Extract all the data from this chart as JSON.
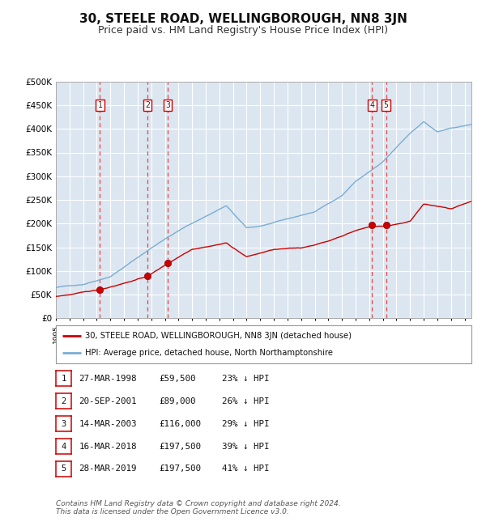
{
  "title": "30, STEELE ROAD, WELLINGBOROUGH, NN8 3JN",
  "subtitle": "Price paid vs. HM Land Registry's House Price Index (HPI)",
  "title_fontsize": 11,
  "subtitle_fontsize": 9,
  "background_color": "#ffffff",
  "plot_bg_color": "#dce6f0",
  "grid_color": "#ffffff",
  "xlim": [
    1995.0,
    2025.5
  ],
  "ylim": [
    0,
    500000
  ],
  "yticks": [
    0,
    50000,
    100000,
    150000,
    200000,
    250000,
    300000,
    350000,
    400000,
    450000,
    500000
  ],
  "ytick_labels": [
    "£0",
    "£50K",
    "£100K",
    "£150K",
    "£200K",
    "£250K",
    "£300K",
    "£350K",
    "£400K",
    "£450K",
    "£500K"
  ],
  "sale_points": [
    {
      "label": "1",
      "year": 1998.23,
      "price": 59500
    },
    {
      "label": "2",
      "year": 2001.72,
      "price": 89000
    },
    {
      "label": "3",
      "year": 2003.2,
      "price": 116000
    },
    {
      "label": "4",
      "year": 2018.21,
      "price": 197500
    },
    {
      "label": "5",
      "year": 2019.24,
      "price": 197500
    }
  ],
  "sale_dates": [
    "27-MAR-1998",
    "20-SEP-2001",
    "14-MAR-2003",
    "16-MAR-2018",
    "28-MAR-2019"
  ],
  "sale_prices_str": [
    "£59,500",
    "£89,000",
    "£116,000",
    "£197,500",
    "£197,500"
  ],
  "sale_hpi_str": [
    "23% ↓ HPI",
    "26% ↓ HPI",
    "29% ↓ HPI",
    "39% ↓ HPI",
    "41% ↓ HPI"
  ],
  "legend_label_red": "30, STEELE ROAD, WELLINGBOROUGH, NN8 3JN (detached house)",
  "legend_label_blue": "HPI: Average price, detached house, North Northamptonshire",
  "footer_text": "Contains HM Land Registry data © Crown copyright and database right 2024.\nThis data is licensed under the Open Government Licence v3.0.",
  "red_line_color": "#cc0000",
  "blue_line_color": "#7aadd4",
  "sale_marker_color": "#cc0000",
  "vline_color": "#ee4444",
  "box_color": "#cc0000",
  "hpi_keypoints_x": [
    1995,
    1997,
    1999,
    2001,
    2003,
    2004.5,
    2007.5,
    2009,
    2010,
    2012,
    2014,
    2016,
    2017,
    2019,
    2021,
    2022,
    2023,
    2024,
    2025.5
  ],
  "hpi_keypoints_y": [
    65000,
    72000,
    90000,
    130000,
    170000,
    195000,
    240000,
    192000,
    196000,
    210000,
    225000,
    260000,
    290000,
    330000,
    390000,
    415000,
    393000,
    400000,
    408000
  ],
  "red_keypoints_x": [
    1995,
    1997,
    1998.23,
    2001.72,
    2003.2,
    2005,
    2007.5,
    2009,
    2011,
    2013,
    2015,
    2017,
    2018.21,
    2019.24,
    2021,
    2022,
    2023,
    2024,
    2025.5
  ],
  "red_keypoints_y": [
    46000,
    54000,
    59500,
    89000,
    116000,
    148000,
    162000,
    133000,
    148000,
    150000,
    165000,
    188000,
    197500,
    197500,
    208000,
    246000,
    240000,
    234000,
    250000
  ]
}
